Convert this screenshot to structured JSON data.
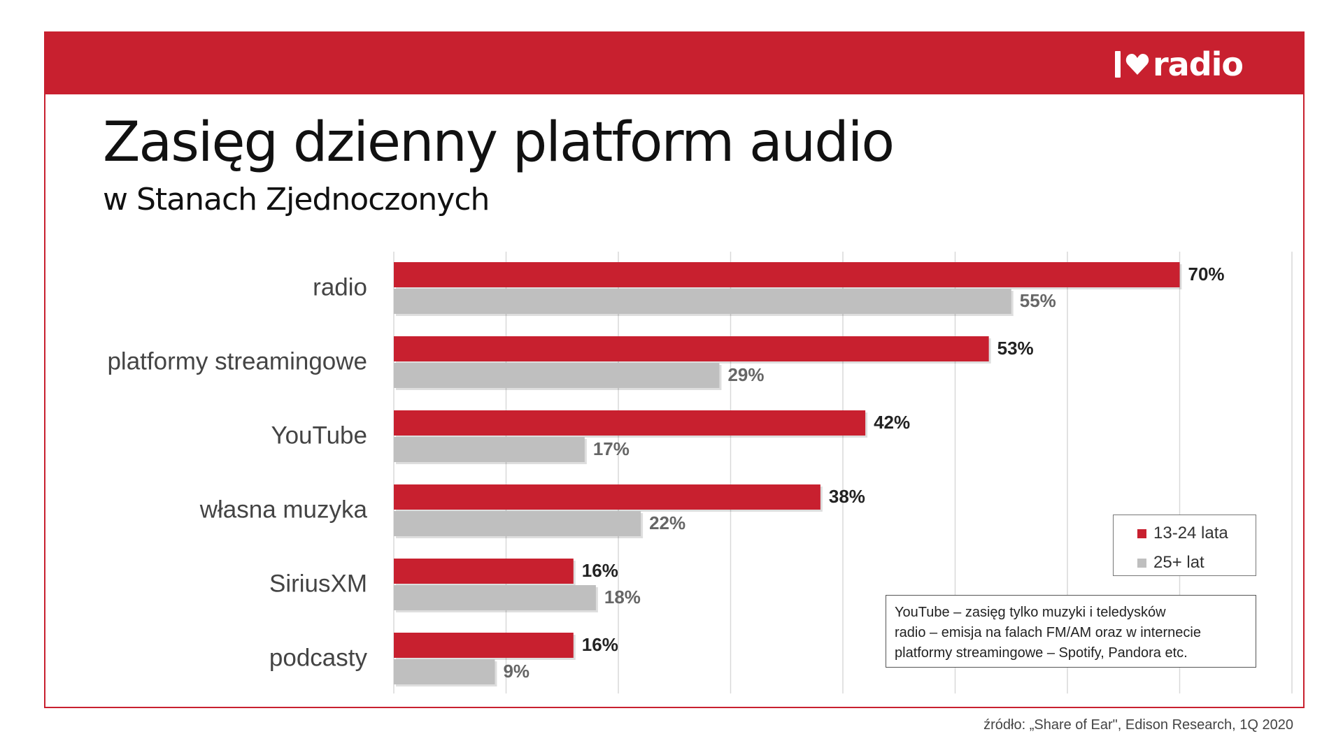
{
  "brand": {
    "logo_text": "radio"
  },
  "title": "Zasięg dzienny platform audio",
  "subtitle": "w Stanach Zjednoczonych",
  "legend": [
    {
      "label": "13-24 lata",
      "color": "#c8202f"
    },
    {
      "label": "25+ lat",
      "color": "#bfbfbf"
    }
  ],
  "note": [
    "YouTube – zasięg tylko muzyki i teledysków",
    "radio – emisja na falach FM/AM oraz w internecie",
    "platformy streamingowe – Spotify, Pandora etc."
  ],
  "source": "źródło: „Share of Ear\", Edison Research, 1Q 2020",
  "chart_data": {
    "type": "bar",
    "orientation": "horizontal",
    "categories": [
      "radio",
      "platformy streamingowe",
      "YouTube",
      "własna muzyka",
      "SiriusXM",
      "podcasty"
    ],
    "series": [
      {
        "name": "13-24 lata",
        "color": "#c8202f",
        "values": [
          70,
          53,
          42,
          38,
          16,
          16
        ]
      },
      {
        "name": "25+ lat",
        "color": "#bfbfbf",
        "values": [
          55,
          29,
          17,
          22,
          18,
          9
        ]
      }
    ],
    "value_suffix": "%",
    "xlim": [
      0,
      80
    ],
    "grid": true,
    "legend_position": "right"
  }
}
